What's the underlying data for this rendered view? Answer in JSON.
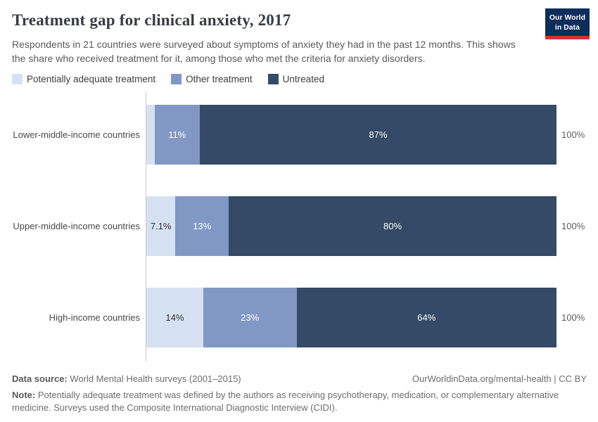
{
  "header": {
    "logo": {
      "line1": "Our World",
      "line2": "in Data"
    },
    "logo_bg_color": "#0d2d5a",
    "logo_stripe_color": "#cf3339"
  },
  "chart_data": {
    "type": "bar",
    "orientation": "horizontal-stacked",
    "title": "Treatment gap for clinical anxiety, 2017",
    "subtitle": "Respondents in 21 countries were surveyed about symptoms of anxiety they had in the past 12 months. This shows the share who received treatment for it, among those who met the criteria for anxiety disorders.",
    "categories": [
      "Lower-middle-income countries",
      "Upper-middle-income countries",
      "High-income countries"
    ],
    "series": [
      {
        "key": "potentially-adequate-treatment",
        "name": "Potentially adequate treatment",
        "color": "#d6e2f2",
        "label_color": "#2f2f2f",
        "values": [
          2,
          7.1,
          14
        ],
        "labels": [
          "",
          "7.1%",
          "14%"
        ]
      },
      {
        "key": "other-treatment",
        "name": "Other treatment",
        "color": "#8198c4",
        "label_color": "#ffffff",
        "values": [
          11,
          13,
          23
        ],
        "labels": [
          "11%",
          "13%",
          "23%"
        ]
      },
      {
        "key": "untreated",
        "name": "Untreated",
        "color": "#344a66",
        "label_color": "#ffffff",
        "values": [
          87,
          80,
          64
        ],
        "labels": [
          "87%",
          "80%",
          "64%"
        ]
      }
    ],
    "total_label": "100%",
    "xlim": [
      0,
      100
    ],
    "grid": false,
    "legend_position": "top"
  },
  "footer": {
    "source_label": "Data source:",
    "source_text": " World Mental Health surveys (2001–2015)",
    "link_text": "OurWorldinData.org/mental-health | CC BY",
    "note_label": "Note:",
    "note_text": " Potentially adequate treatment was defined by the authors as receiving psychotherapy, medication, or complementary alternative medicine. Surveys used the Composite International Diagnostic Interview (CIDI)."
  }
}
